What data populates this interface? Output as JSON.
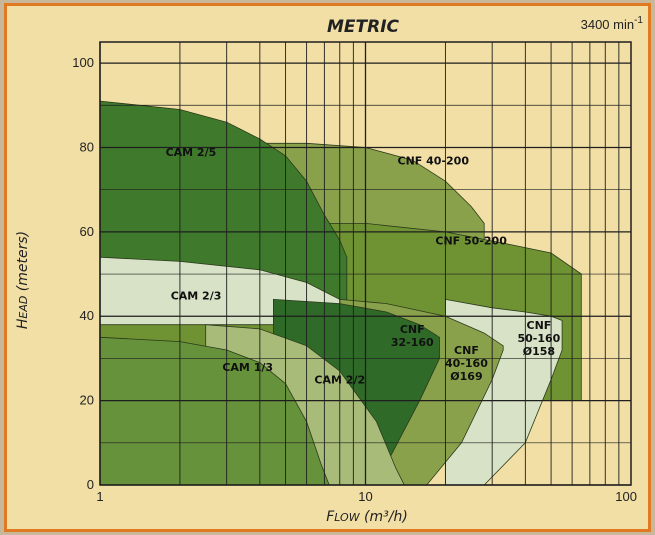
{
  "chart_data": {
    "type": "area",
    "title": "METRIC",
    "speed_label": "3400 min",
    "speed_exp": "-1",
    "xlabel": "FLOW (m³/h)",
    "xlabel_lead": "F",
    "xlabel_caps": "LOW",
    "xlabel_unit": "(m³/h)",
    "ylabel": "HEAD (meters)",
    "ylabel_lead": "H",
    "ylabel_caps": "EAD",
    "ylabel_unit": "(meters)",
    "x_scale": "log",
    "xlim": [
      1,
      100
    ],
    "ylim": [
      0,
      105
    ],
    "x_ticks": [
      {
        "v": 1,
        "label": "1"
      },
      {
        "v": 10,
        "label": "10"
      },
      {
        "v": 100,
        "label": "100"
      }
    ],
    "y_ticks": [
      {
        "v": 0,
        "label": "0"
      },
      {
        "v": 20,
        "label": "20"
      },
      {
        "v": 40,
        "label": "40"
      },
      {
        "v": 60,
        "label": "60"
      },
      {
        "v": 80,
        "label": "80"
      },
      {
        "v": 100,
        "label": "100"
      }
    ],
    "grid": true,
    "colors": {
      "frame_bg": "#f2dfa6",
      "border": "#e07a22",
      "grid": "#1e1e1e"
    },
    "series": [
      {
        "name": "CNF 40-200",
        "color": "#8aa14c",
        "upper": [
          [
            3.8,
            81
          ],
          [
            6,
            81
          ],
          [
            10,
            80
          ],
          [
            15,
            77
          ],
          [
            20,
            72
          ],
          [
            25,
            66
          ],
          [
            28,
            62
          ]
        ],
        "lower": [
          [
            3.8,
            20
          ],
          [
            6,
            20
          ],
          [
            10,
            20
          ],
          [
            15,
            20
          ],
          [
            20,
            20
          ],
          [
            25,
            20
          ],
          [
            28,
            20
          ]
        ],
        "label_lines": [
          "CNF 40-200"
        ],
        "label_at": [
          18,
          76
        ]
      },
      {
        "name": "CNF 50-200",
        "color": "#6f9233",
        "upper": [
          [
            1,
            62
          ],
          [
            10,
            62
          ],
          [
            20,
            60
          ],
          [
            35,
            57
          ],
          [
            50,
            55
          ],
          [
            65,
            50
          ]
        ],
        "lower": [
          [
            1,
            20
          ],
          [
            10,
            20
          ],
          [
            20,
            20
          ],
          [
            35,
            20
          ],
          [
            50,
            20
          ],
          [
            65,
            20
          ]
        ],
        "label_lines": [
          "CNF 50-200"
        ],
        "label_at": [
          25,
          57
        ]
      },
      {
        "name": "CAM 2/5",
        "color": "#3f7a2c",
        "upper": [
          [
            1,
            91
          ],
          [
            2,
            89
          ],
          [
            3,
            86
          ],
          [
            4,
            82
          ],
          [
            5,
            78
          ],
          [
            6,
            72
          ],
          [
            7,
            64
          ],
          [
            8,
            58
          ],
          [
            8.5,
            54
          ]
        ],
        "lower": [
          [
            1,
            40
          ],
          [
            2,
            40
          ],
          [
            3,
            40
          ],
          [
            4,
            40
          ],
          [
            5,
            40
          ],
          [
            6,
            40
          ],
          [
            7,
            40
          ],
          [
            8,
            40
          ],
          [
            8.5,
            40
          ]
        ],
        "label_lines": [
          "CAM 2/5"
        ],
        "label_at": [
          2.2,
          78
        ]
      },
      {
        "name": "CAM 2/3",
        "color": "#d7e2c6",
        "upper": [
          [
            1,
            54
          ],
          [
            2,
            53
          ],
          [
            4,
            51
          ],
          [
            6,
            48
          ],
          [
            8,
            44
          ],
          [
            10,
            38
          ],
          [
            12,
            33
          ]
        ],
        "lower": [
          [
            1,
            38
          ],
          [
            2,
            38
          ],
          [
            4,
            38
          ],
          [
            6,
            38
          ],
          [
            8,
            30
          ],
          [
            10,
            22
          ],
          [
            12,
            16
          ]
        ],
        "label_lines": [
          "CAM 2/3"
        ],
        "label_at": [
          2.3,
          44
        ]
      },
      {
        "name": "CNF 50-160 Ø158",
        "color": "#d7e2c6",
        "upper": [
          [
            20,
            44
          ],
          [
            30,
            42
          ],
          [
            40,
            41
          ],
          [
            50,
            40
          ],
          [
            55,
            39
          ]
        ],
        "lower": [
          [
            20,
            0
          ],
          [
            28,
            0
          ],
          [
            40,
            10
          ],
          [
            50,
            25
          ],
          [
            55,
            32
          ]
        ],
        "label_lines": [
          "CNF",
          "50-160",
          "Ø158"
        ],
        "label_at": [
          45,
          37
        ]
      },
      {
        "name": "CNF 40-160 Ø169",
        "color": "#8aa14c",
        "upper": [
          [
            8,
            44
          ],
          [
            12,
            43
          ],
          [
            20,
            40
          ],
          [
            28,
            36
          ],
          [
            33,
            33
          ]
        ],
        "lower": [
          [
            8,
            0
          ],
          [
            17,
            0
          ],
          [
            23,
            10
          ],
          [
            30,
            25
          ],
          [
            33,
            32
          ]
        ],
        "label_lines": [
          "CNF",
          "40-160",
          "Ø169"
        ],
        "label_at": [
          24,
          31
        ]
      },
      {
        "name": "CNF 32-160",
        "color": "#2f6a28",
        "upper": [
          [
            4.5,
            44
          ],
          [
            8,
            43
          ],
          [
            12,
            41
          ],
          [
            16,
            38
          ],
          [
            19,
            35
          ]
        ],
        "lower": [
          [
            4.5,
            10
          ],
          [
            8,
            0
          ],
          [
            12,
            5
          ],
          [
            16,
            20
          ],
          [
            19,
            30
          ]
        ],
        "label_lines": [
          "CNF",
          "32-160"
        ],
        "label_at": [
          15,
          36
        ]
      },
      {
        "name": "CAM 2/2",
        "color": "#a9bb79",
        "upper": [
          [
            2.5,
            38
          ],
          [
            4,
            37
          ],
          [
            6,
            33
          ],
          [
            8,
            27
          ],
          [
            11,
            15
          ],
          [
            13,
            4
          ],
          [
            14,
            0
          ]
        ],
        "lower": [
          [
            2.5,
            0
          ],
          [
            4,
            0
          ],
          [
            6,
            0
          ],
          [
            8,
            0
          ],
          [
            11,
            0
          ],
          [
            13,
            0
          ],
          [
            14,
            0
          ]
        ],
        "label_lines": [
          "CAM 2/2"
        ],
        "label_at": [
          8,
          24
        ]
      },
      {
        "name": "CAM 1/3",
        "color": "#65923a",
        "upper": [
          [
            1,
            35
          ],
          [
            2,
            34
          ],
          [
            3,
            32
          ],
          [
            4,
            29
          ],
          [
            5,
            24
          ],
          [
            6,
            15
          ],
          [
            6.8,
            5
          ],
          [
            7.3,
            0
          ]
        ],
        "lower": [
          [
            1,
            0
          ],
          [
            2,
            0
          ],
          [
            3,
            0
          ],
          [
            4,
            0
          ],
          [
            5,
            0
          ],
          [
            6,
            0
          ],
          [
            6.8,
            0
          ],
          [
            7.3,
            0
          ]
        ],
        "label_lines": [
          "CAM 1/3"
        ],
        "label_at": [
          3.6,
          27
        ]
      }
    ]
  }
}
